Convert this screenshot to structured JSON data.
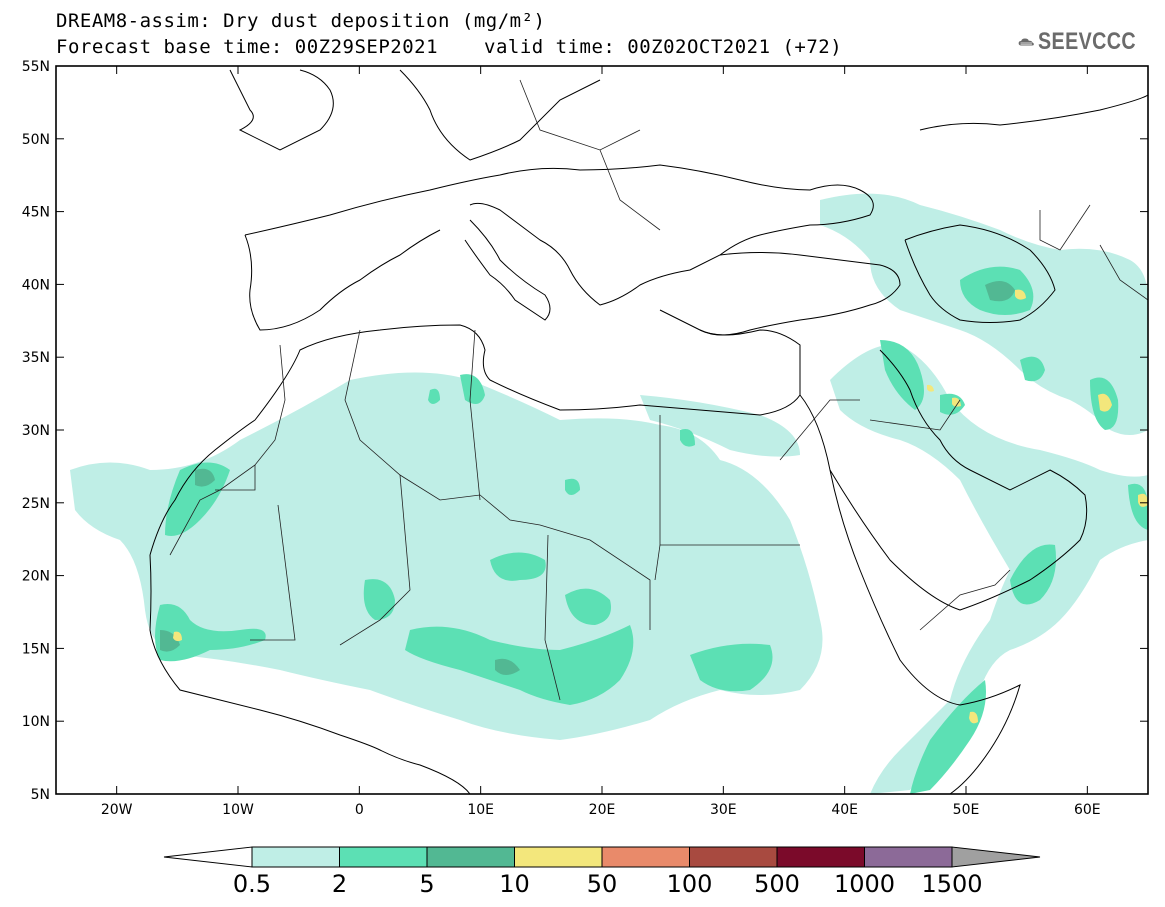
{
  "header": {
    "title": "DREAM8-assim: Dry dust deposition (mg/m²)",
    "base_time": "Forecast base time: 00Z29SEP2021",
    "valid_time": "valid time: 00Z02OCT2021 (+72)",
    "logo_text": "SEEVCCC"
  },
  "map": {
    "lon_range": [
      -25,
      65
    ],
    "lat_range": [
      5,
      55
    ],
    "lat_ticks": [
      {
        "value": 55,
        "label": "55N"
      },
      {
        "value": 50,
        "label": "50N"
      },
      {
        "value": 45,
        "label": "45N"
      },
      {
        "value": 40,
        "label": "40N"
      },
      {
        "value": 35,
        "label": "35N"
      },
      {
        "value": 30,
        "label": "30N"
      },
      {
        "value": 25,
        "label": "25N"
      },
      {
        "value": 20,
        "label": "20N"
      },
      {
        "value": 15,
        "label": "15N"
      },
      {
        "value": 10,
        "label": "10N"
      },
      {
        "value": 5,
        "label": "5N"
      }
    ],
    "lon_ticks": [
      {
        "value": -20,
        "label": "20W"
      },
      {
        "value": -10,
        "label": "10W"
      },
      {
        "value": 0,
        "label": "0"
      },
      {
        "value": 10,
        "label": "10E"
      },
      {
        "value": 20,
        "label": "20E"
      },
      {
        "value": 30,
        "label": "30E"
      },
      {
        "value": 40,
        "label": "40E"
      },
      {
        "value": 50,
        "label": "50E"
      },
      {
        "value": 60,
        "label": "60E"
      }
    ]
  },
  "colorbar": {
    "levels": [
      "0.5",
      "2",
      "5",
      "10",
      "50",
      "100",
      "500",
      "1000",
      "1500"
    ],
    "colors": [
      "#bfeee6",
      "#5ce0b4",
      "#52b893",
      "#f3e77c",
      "#e98a6a",
      "#a84a40",
      "#7b0a2a",
      "#8c6a98",
      "#a0a0a0"
    ]
  }
}
